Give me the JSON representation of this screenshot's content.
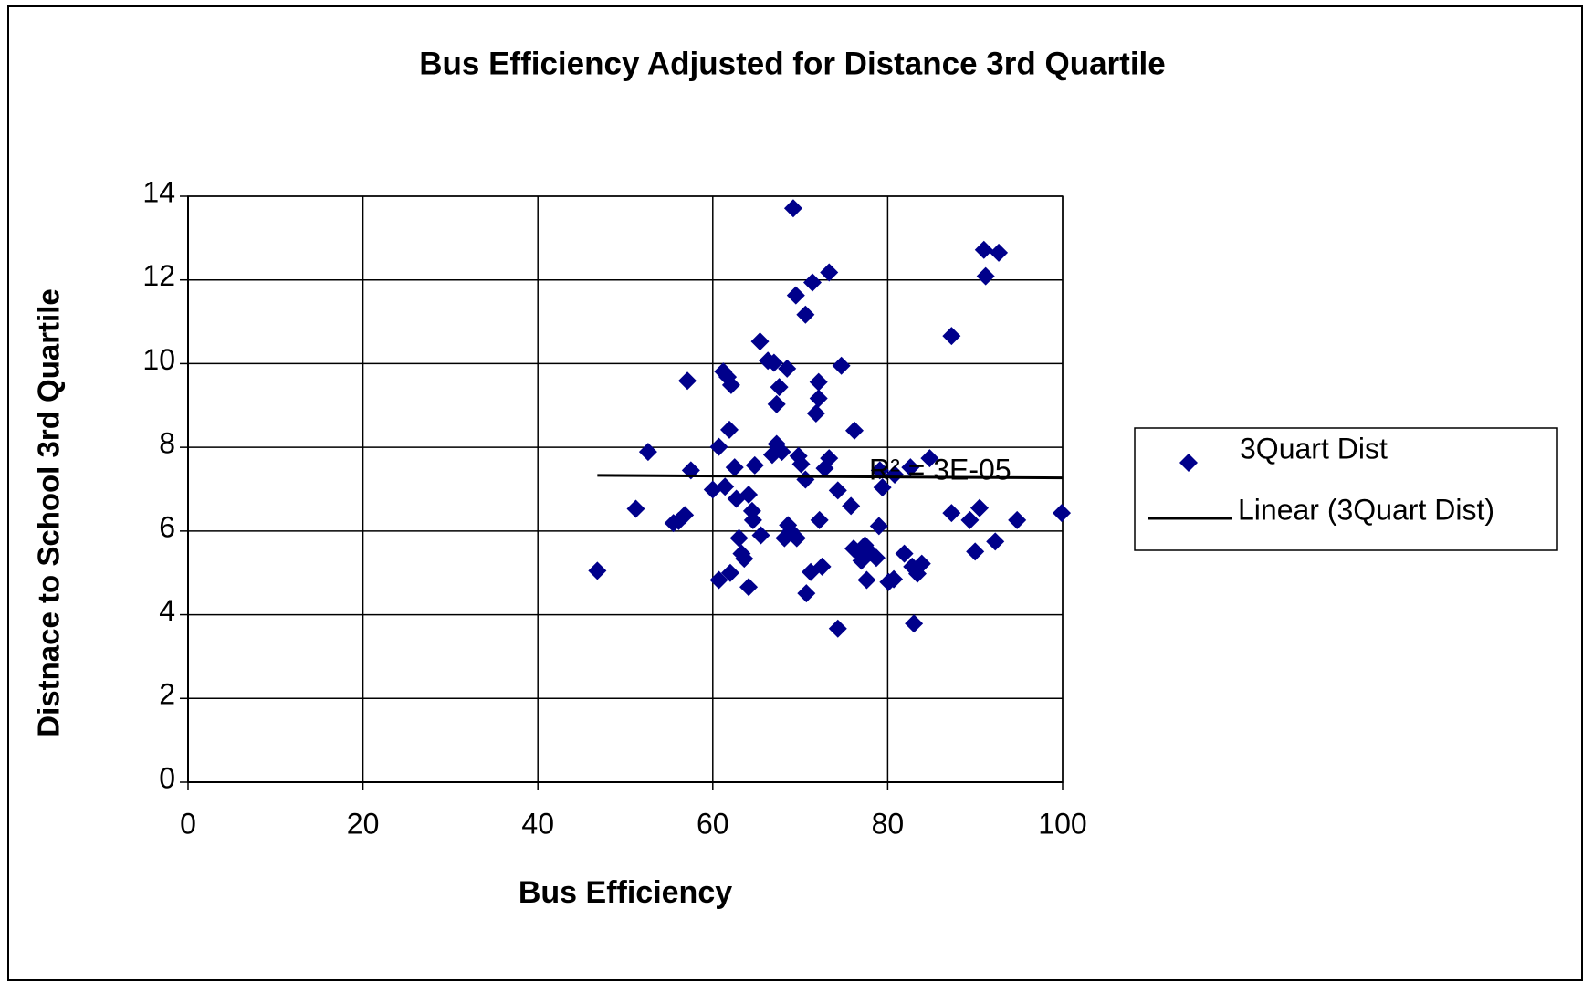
{
  "chart_data": {
    "type": "scatter",
    "title": "Bus Efficiency Adjusted for Distance 3rd Quartile",
    "xlabel": "Bus Efficiency",
    "ylabel": "Distnace to School 3rd Quartile",
    "xlim": [
      0,
      100
    ],
    "ylim": [
      0,
      14
    ],
    "xticks": [
      0,
      20,
      40,
      60,
      80,
      100
    ],
    "yticks": [
      0,
      2,
      4,
      6,
      8,
      10,
      12,
      14
    ],
    "grid": true,
    "legend": "right",
    "series": [
      {
        "name": "3Quart Dist",
        "color": "#00008b",
        "x": [
          46.8,
          51.2,
          52.6,
          55.5,
          56.1,
          56.8,
          57.1,
          57.5,
          60.0,
          60.7,
          60.7,
          61.2,
          61.4,
          61.7,
          62.0,
          62.1,
          61.9,
          62.5,
          62.7,
          63.0,
          63.3,
          63.6,
          64.1,
          64.1,
          64.5,
          64.6,
          64.8,
          65.4,
          65.5,
          66.3,
          66.8,
          67.0,
          67.3,
          67.3,
          67.6,
          67.9,
          68.2,
          68.5,
          68.6,
          68.9,
          69.2,
          69.5,
          69.6,
          69.8,
          70.1,
          70.6,
          70.6,
          70.7,
          71.2,
          71.4,
          71.8,
          72.1,
          72.1,
          72.2,
          72.5,
          72.8,
          73.3,
          73.3,
          74.3,
          74.3,
          74.7,
          75.8,
          76.1,
          76.2,
          76.8,
          77.0,
          77.4,
          77.6,
          78.0,
          78.7,
          79.0,
          79.1,
          79.4,
          80.1,
          80.7,
          80.8,
          81.9,
          82.6,
          82.8,
          83.0,
          83.4,
          83.9,
          84.8,
          87.3,
          87.3,
          89.4,
          90.0,
          90.5,
          91.0,
          91.2,
          92.3,
          92.7,
          94.8,
          99.9
        ],
        "values": [
          5.05,
          6.53,
          7.89,
          6.19,
          6.24,
          6.38,
          9.59,
          7.45,
          6.99,
          8.01,
          4.83,
          9.81,
          7.06,
          9.68,
          5.0,
          9.49,
          8.42,
          7.52,
          6.77,
          5.83,
          5.46,
          5.34,
          6.87,
          4.66,
          6.48,
          6.26,
          7.57,
          10.53,
          5.9,
          10.07,
          7.82,
          10.02,
          9.03,
          8.08,
          9.44,
          7.89,
          5.83,
          9.88,
          6.14,
          6.0,
          13.71,
          11.63,
          5.83,
          7.79,
          7.6,
          11.17,
          7.23,
          4.51,
          5.02,
          11.94,
          8.81,
          9.56,
          9.17,
          6.26,
          5.15,
          7.5,
          7.74,
          12.18,
          3.67,
          6.97,
          9.95,
          6.6,
          5.58,
          8.4,
          5.46,
          5.29,
          5.66,
          4.83,
          5.49,
          5.36,
          6.12,
          7.45,
          7.04,
          4.78,
          4.85,
          7.35,
          5.46,
          7.52,
          5.15,
          3.79,
          4.98,
          5.22,
          7.74,
          10.66,
          6.43,
          6.26,
          5.51,
          6.55,
          12.72,
          12.09,
          5.75,
          12.65,
          6.26,
          6.43
        ]
      }
    ],
    "trendline": {
      "name": "Linear (3Quart Dist)",
      "color": "#000000",
      "x": [
        46.8,
        100
      ],
      "values": [
        7.33,
        7.27
      ]
    },
    "annotation": "R² = 3E-05"
  }
}
